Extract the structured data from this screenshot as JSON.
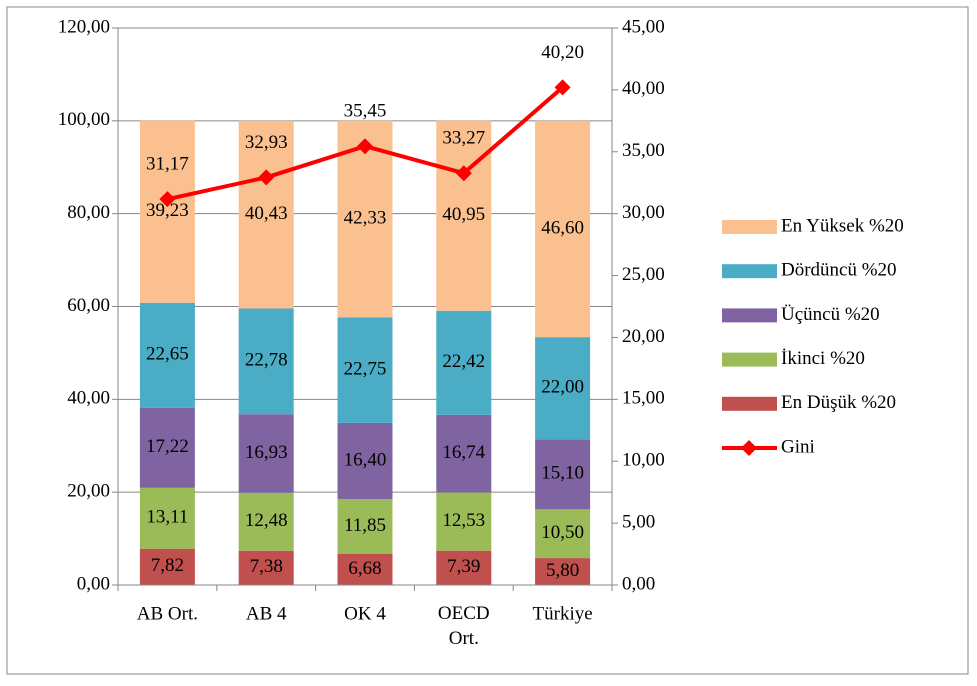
{
  "chart_data": {
    "type": "stacked-bar-line",
    "categories": [
      "AB Ort.",
      "AB 4",
      "OK 4",
      "OECD Ort.",
      "Türkiye"
    ],
    "series": [
      {
        "name": "En Düşük %20",
        "color": "#c0504d",
        "values": [
          7.82,
          7.38,
          6.68,
          7.39,
          5.8
        ],
        "value_labels": [
          "7,82",
          "7,38",
          "6,68",
          "7,39",
          "5,80"
        ]
      },
      {
        "name": "İkinci %20",
        "color": "#9bbb59",
        "values": [
          13.11,
          12.48,
          11.85,
          12.53,
          10.5
        ],
        "value_labels": [
          "13,11",
          "12,48",
          "11,85",
          "12,53",
          "10,50"
        ]
      },
      {
        "name": "Üçüncü %20",
        "color": "#8064a2",
        "values": [
          17.22,
          16.93,
          16.4,
          16.74,
          15.1
        ],
        "value_labels": [
          "17,22",
          "16,93",
          "16,40",
          "16,74",
          "15,10"
        ]
      },
      {
        "name": "Dördüncü %20",
        "color": "#4bacc6",
        "values": [
          22.65,
          22.78,
          22.75,
          22.42,
          22.0
        ],
        "value_labels": [
          "22,65",
          "22,78",
          "22,75",
          "22,42",
          "22,00"
        ]
      },
      {
        "name": "En Yüksek %20",
        "color": "#fac090",
        "values": [
          39.23,
          40.43,
          42.33,
          40.95,
          46.6
        ],
        "value_labels": [
          "39,23",
          "40,43",
          "42,33",
          "40,95",
          "46,60"
        ]
      },
      {
        "name": "Gini",
        "color": "#ff0000",
        "axis": "y2",
        "values": [
          31.17,
          32.93,
          35.45,
          33.27,
          40.2
        ],
        "value_labels": [
          "31,17",
          "32,93",
          "35,45",
          "33,27",
          "40,20"
        ]
      }
    ],
    "ylim": [
      0,
      120
    ],
    "yticks": [
      {
        "value": 0,
        "label": "0,00"
      },
      {
        "value": 20,
        "label": "20,00"
      },
      {
        "value": 40,
        "label": "40,00"
      },
      {
        "value": 60,
        "label": "60,00"
      },
      {
        "value": 80,
        "label": "80,00"
      },
      {
        "value": 100,
        "label": "100,00"
      },
      {
        "value": 120,
        "label": "120,00"
      }
    ],
    "y2lim": [
      0,
      45
    ],
    "y2ticks": [
      {
        "value": 0,
        "label": "0,00"
      },
      {
        "value": 5,
        "label": "5,00"
      },
      {
        "value": 10,
        "label": "10,00"
      },
      {
        "value": 15,
        "label": "15,00"
      },
      {
        "value": 20,
        "label": "20,00"
      },
      {
        "value": 25,
        "label": "25,00"
      },
      {
        "value": 30,
        "label": "30,00"
      },
      {
        "value": 35,
        "label": "35,00"
      },
      {
        "value": 40,
        "label": "40,00"
      },
      {
        "value": 45,
        "label": "45,00"
      }
    ],
    "grid": true,
    "legend": "right"
  }
}
